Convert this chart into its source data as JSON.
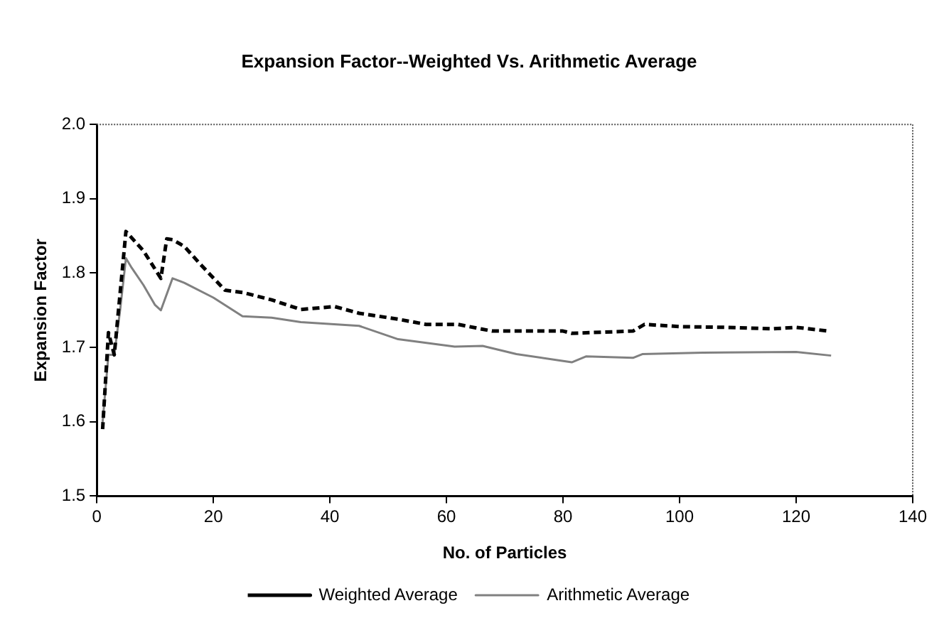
{
  "chart_data": {
    "type": "line",
    "title": "Expansion Factor--Weighted Vs. Arithmetic Average",
    "xlabel": "No. of Particles",
    "ylabel": "Expansion Factor",
    "xlim": [
      0,
      140
    ],
    "xticks": [
      0,
      20,
      40,
      60,
      80,
      100,
      120,
      140
    ],
    "ylim": [
      1.5,
      2.0
    ],
    "yticks": [
      {
        "value": 1.5,
        "label": "1.5"
      },
      {
        "value": 1.6,
        "label": "1.6"
      },
      {
        "value": 1.7,
        "label": "1.7"
      },
      {
        "value": 1.8,
        "label": "1.8"
      },
      {
        "value": 1.9,
        "label": "1.9"
      },
      {
        "value": 2.0,
        "label": "2.0"
      }
    ],
    "grid": false,
    "legend": "bottom",
    "marker": "none",
    "series": [
      {
        "name": "Weighted Average",
        "color": "#000000",
        "line_style": "dashed",
        "x": [
          1,
          2,
          3,
          5,
          8,
          11,
          12,
          13,
          15,
          18,
          22,
          25,
          30,
          35,
          40.8,
          45,
          51.7,
          56.5,
          62,
          67.8,
          80,
          81.5,
          92,
          94,
          100,
          108,
          116,
          120,
          125.5
        ],
        "values": [
          1.59,
          1.72,
          1.69,
          1.856,
          1.83,
          1.793,
          1.846,
          1.845,
          1.836,
          1.81,
          1.777,
          1.774,
          1.764,
          1.751,
          1.755,
          1.746,
          1.738,
          1.731,
          1.731,
          1.722,
          1.722,
          1.719,
          1.722,
          1.731,
          1.728,
          1.727,
          1.725,
          1.727,
          1.722
        ]
      },
      {
        "name": "Arithmetic Average",
        "color": "#808080",
        "line_style": "solid",
        "x": [
          1,
          2,
          3,
          4,
          5,
          6,
          8,
          10,
          11,
          13,
          15,
          20,
          25,
          30,
          35,
          45,
          51.7,
          61.4,
          66.2,
          72,
          81.5,
          84,
          92,
          93.6,
          104,
          120,
          126
        ],
        "values": [
          1.6,
          1.69,
          1.69,
          1.75,
          1.82,
          1.807,
          1.784,
          1.757,
          1.75,
          1.793,
          1.787,
          1.767,
          1.742,
          1.74,
          1.734,
          1.729,
          1.711,
          1.701,
          1.702,
          1.691,
          1.68,
          1.688,
          1.686,
          1.691,
          1.693,
          1.694,
          1.689
        ]
      }
    ]
  }
}
